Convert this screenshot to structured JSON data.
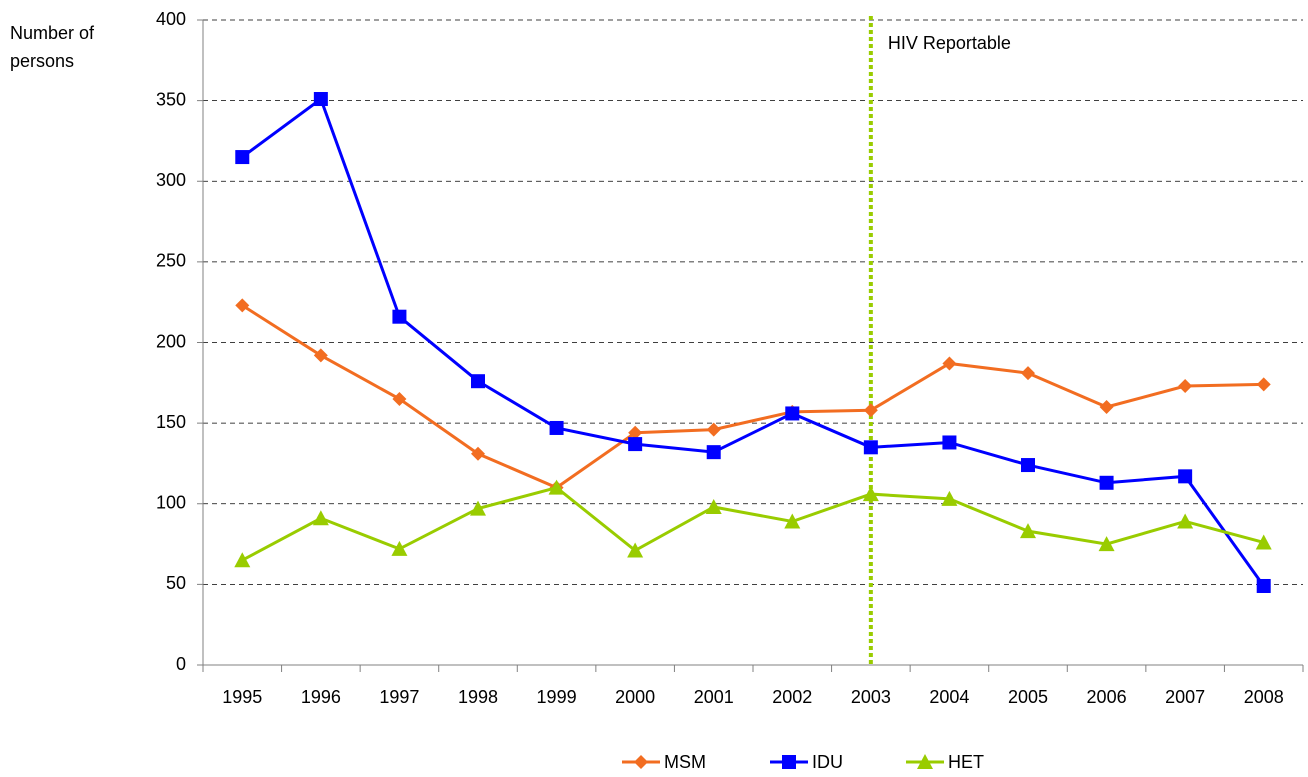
{
  "chart_data": {
    "type": "line",
    "ylabel": [
      "Number of",
      "persons"
    ],
    "categories": [
      "1995",
      "1996",
      "1997",
      "1998",
      "1999",
      "2000",
      "2001",
      "2002",
      "2003",
      "2004",
      "2005",
      "2006",
      "2007",
      "2008"
    ],
    "series": [
      {
        "name": "MSM",
        "color": "#f26d21",
        "marker": "diamond",
        "values": [
          223,
          192,
          165,
          131,
          110,
          144,
          146,
          157,
          158,
          187,
          181,
          160,
          173,
          174
        ]
      },
      {
        "name": "IDU",
        "color": "#0000ff",
        "marker": "square",
        "values": [
          315,
          351,
          216,
          176,
          147,
          137,
          132,
          156,
          135,
          138,
          124,
          113,
          117,
          49
        ]
      },
      {
        "name": "HET",
        "color": "#99cc00",
        "marker": "triangle",
        "values": [
          65,
          91,
          72,
          97,
          110,
          71,
          98,
          89,
          106,
          103,
          83,
          75,
          89,
          76
        ]
      }
    ],
    "ylim": [
      0,
      400
    ],
    "yticks": [
      0,
      50,
      100,
      150,
      200,
      250,
      300,
      350,
      400
    ],
    "grid": true,
    "legend": "bottom",
    "annotation": {
      "text": "HIV Reportable",
      "category": "2003",
      "color": "#99cc00"
    }
  }
}
